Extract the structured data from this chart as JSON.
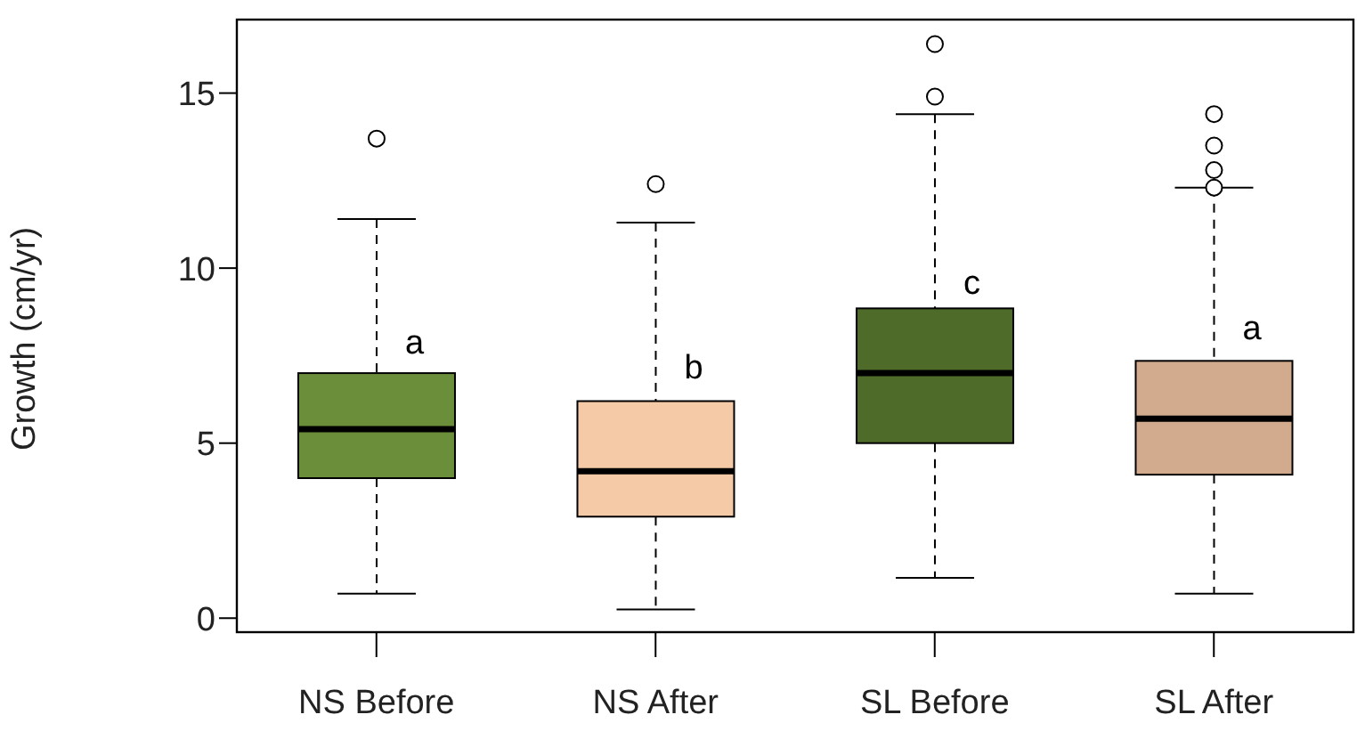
{
  "chart_data": {
    "type": "box",
    "ylabel": "Growth (cm/yr)",
    "categories": [
      "NS Before",
      "NS After",
      "SL Before",
      "SL After"
    ],
    "colors": [
      "#6b8e3a",
      "#f5cba7",
      "#4f6b2a",
      "#d2ab8e"
    ],
    "boxes": [
      {
        "low": 0.7,
        "q1": 4.0,
        "median": 5.4,
        "q3": 7.0,
        "high": 11.4,
        "outliers": [
          13.7
        ]
      },
      {
        "low": 0.25,
        "q1": 2.9,
        "median": 4.2,
        "q3": 6.2,
        "high": 11.3,
        "outliers": [
          12.4
        ]
      },
      {
        "low": 1.15,
        "q1": 5.0,
        "median": 7.0,
        "q3": 8.85,
        "high": 14.4,
        "outliers": [
          14.9,
          16.4
        ]
      },
      {
        "low": 0.7,
        "q1": 4.1,
        "median": 5.7,
        "q3": 7.35,
        "high": 12.3,
        "outliers": [
          12.3,
          12.8,
          13.5,
          14.4
        ]
      }
    ],
    "annotations": [
      {
        "text": "a",
        "x": "NS Before",
        "y": 7.9
      },
      {
        "text": "b",
        "x": "NS After",
        "y": 7.2
      },
      {
        "text": "c",
        "x": "SL Before",
        "y": 9.6
      },
      {
        "text": "a",
        "x": "SL After",
        "y": 8.3
      }
    ],
    "ylim": [
      -0.4,
      17.1
    ],
    "yticks": [
      0,
      5,
      10,
      15
    ],
    "grid": false,
    "legend": false
  }
}
